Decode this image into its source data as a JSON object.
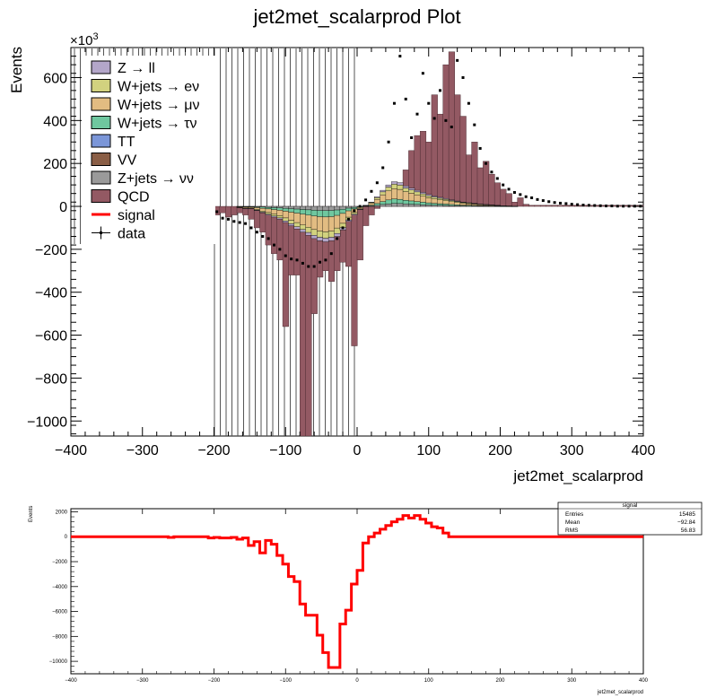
{
  "chart_data": [
    {
      "type": "stacked-histogram",
      "title": "jet2met_scalarprod Plot",
      "xlabel": "jet2met_scalarprod",
      "ylabel": "Events",
      "y_exponent_label": "×10",
      "y_exponent_power": "3",
      "xlim": [
        -400,
        400
      ],
      "ylim": [
        -1070,
        740
      ],
      "x_ticks": [
        -400,
        -300,
        -200,
        -100,
        0,
        100,
        200,
        300,
        400
      ],
      "x_tick_labels": [
        "−400",
        "−300",
        "−200",
        "−100",
        "0",
        "100",
        "200",
        "300",
        "400"
      ],
      "y_ticks": [
        600,
        400,
        200,
        0,
        -200,
        -400,
        -600,
        -800,
        -1000
      ],
      "y_tick_labels": [
        "600",
        "400",
        "200",
        "0",
        "−200",
        "−400",
        "−600",
        "−800",
        "−1000"
      ],
      "legend_position": "top-left",
      "legend": [
        {
          "label": "Z → ll",
          "kind": "fill",
          "color": "#b3a6c9"
        },
        {
          "label": "W+jets → eν",
          "kind": "fill",
          "color": "#d2d27f"
        },
        {
          "label": "W+jets → μν",
          "kind": "fill",
          "color": "#e2bc82"
        },
        {
          "label": "W+jets → τν",
          "kind": "fill",
          "color": "#6fc79f"
        },
        {
          "label": "TT",
          "kind": "fill",
          "color": "#7b96d8"
        },
        {
          "label": "VV",
          "kind": "fill",
          "color": "#8a5e46"
        },
        {
          "label": "Z+jets → νν",
          "kind": "fill",
          "color": "#9a9a9a"
        },
        {
          "label": "QCD",
          "kind": "fill",
          "color": "#935963"
        },
        {
          "label": "signal",
          "kind": "line",
          "color": "#ff0000"
        },
        {
          "label": "data",
          "kind": "marker",
          "color": "#000000"
        }
      ],
      "bin_width": 8,
      "x_start": -200,
      "x_end": 400,
      "stack_order": [
        "QCD",
        "Z+jets → νν",
        "VV",
        "TT",
        "W+jets → τν",
        "W+jets → μν",
        "W+jets → eν",
        "Z → ll"
      ],
      "qcd_values": [
        -40,
        -30,
        -50,
        -40,
        -30,
        -40,
        -60,
        -100,
        -120,
        -180,
        -220,
        -250,
        -560,
        -320,
        -320,
        -1070,
        -1070,
        -500,
        -330,
        -300,
        -350,
        -300,
        -260,
        -280,
        -650,
        -250,
        -90,
        -40,
        -10,
        10,
        40,
        70,
        110,
        170,
        260,
        330,
        350,
        300,
        520,
        430,
        660,
        720,
        520,
        420,
        240,
        300,
        180,
        210,
        150,
        110,
        80,
        60,
        20,
        40,
        10,
        5,
        5,
        5,
        5,
        5,
        5,
        5,
        5,
        5,
        5,
        5,
        5,
        5,
        5,
        5,
        5,
        5,
        5,
        5,
        5
      ],
      "bkg_stack_total": [
        0,
        0,
        0,
        0,
        -5,
        -10,
        -10,
        -20,
        -30,
        -40,
        -50,
        -60,
        -75,
        -90,
        -105,
        -120,
        -135,
        -150,
        -160,
        -165,
        -160,
        -140,
        -110,
        -70,
        -40,
        -15,
        5,
        20,
        45,
        75,
        100,
        115,
        110,
        95,
        85,
        75,
        65,
        55,
        48,
        42,
        36,
        30,
        25,
        20,
        17,
        14,
        11,
        9,
        7,
        5,
        3,
        2,
        1,
        0,
        0,
        0,
        0,
        0,
        0,
        0,
        0,
        0,
        0,
        0,
        0,
        0,
        0,
        0,
        0,
        0,
        0,
        0,
        0,
        0,
        0
      ],
      "data_points_x": [
        -196,
        -188,
        -180,
        -172,
        -164,
        -156,
        -148,
        -140,
        -132,
        -124,
        -116,
        -108,
        -100,
        -92,
        -84,
        -76,
        -68,
        -60,
        -52,
        -44,
        -36,
        -28,
        -20,
        -12,
        -4,
        4,
        12,
        20,
        28,
        36,
        44,
        52,
        60,
        68,
        76,
        84,
        92,
        100,
        108,
        116,
        124,
        132,
        140,
        148,
        156,
        164,
        172,
        180,
        188,
        196,
        204,
        212,
        220,
        228,
        236,
        244,
        252,
        260,
        268,
        276,
        284,
        292,
        300,
        308,
        316,
        324,
        332,
        340,
        348,
        356,
        364,
        372,
        380,
        388,
        396
      ],
      "data_points_y": [
        -25,
        -55,
        -60,
        -70,
        -75,
        -80,
        -100,
        -120,
        -140,
        -150,
        -180,
        -200,
        -230,
        -245,
        -250,
        -265,
        -280,
        -280,
        -260,
        -250,
        -220,
        -150,
        -100,
        -60,
        -20,
        0,
        30,
        70,
        110,
        180,
        300,
        480,
        700,
        500,
        320,
        430,
        620,
        480,
        410,
        540,
        400,
        370,
        680,
        600,
        480,
        380,
        270,
        200,
        160,
        130,
        100,
        80,
        65,
        55,
        45,
        40,
        32,
        27,
        22,
        18,
        15,
        13,
        10,
        8,
        6,
        5,
        4,
        3,
        2,
        2,
        1,
        1,
        1,
        1,
        1
      ]
    },
    {
      "type": "step-line",
      "title": "",
      "xlabel": "jet2met_scalarprod",
      "ylabel": "Events",
      "xlim": [
        -400,
        400
      ],
      "ylim": [
        -11000,
        2250
      ],
      "x_ticks": [
        -400,
        -300,
        -200,
        -100,
        0,
        100,
        200,
        300,
        400
      ],
      "x_tick_labels": [
        "−400",
        "−300",
        "−200",
        "−100",
        "0",
        "100",
        "200",
        "300",
        "400"
      ],
      "y_ticks": [
        2000,
        0,
        -2000,
        -4000,
        -6000,
        -8000,
        -10000
      ],
      "y_tick_labels": [
        "2000",
        "0",
        "−2000",
        "−4000",
        "−6000",
        "−8000",
        "−10000"
      ],
      "series": [
        {
          "name": "signal",
          "color": "#ff0000",
          "bin_width": 8,
          "x_start": -400,
          "values": [
            0,
            0,
            0,
            0,
            0,
            0,
            0,
            0,
            0,
            0,
            0,
            0,
            0,
            0,
            0,
            0,
            0,
            -50,
            0,
            0,
            0,
            0,
            0,
            0,
            -100,
            -50,
            -100,
            -100,
            -50,
            -200,
            -100,
            -700,
            -400,
            -1300,
            -300,
            -600,
            -1500,
            -2200,
            -3200,
            -3600,
            -5400,
            -6300,
            -6300,
            -7900,
            -9300,
            -10500,
            -10500,
            -7000,
            -5900,
            -3800,
            -2700,
            -500,
            0,
            300,
            600,
            900,
            1200,
            1400,
            1700,
            1500,
            1700,
            1400,
            1100,
            800,
            700,
            300,
            0,
            0,
            0,
            0,
            0,
            0,
            0,
            0,
            0,
            0,
            0,
            0,
            0,
            0,
            0,
            0,
            0,
            0,
            0,
            0,
            0,
            0,
            0,
            0,
            0,
            0,
            0,
            0,
            0,
            0,
            0,
            0,
            0,
            0
          ]
        }
      ],
      "stats_box": {
        "title": "signal",
        "rows": [
          {
            "label": "Entries",
            "value": "15485"
          },
          {
            "label": "Mean",
            "value": "−92.84"
          },
          {
            "label": "RMS",
            "value": "56.83"
          }
        ]
      }
    }
  ]
}
